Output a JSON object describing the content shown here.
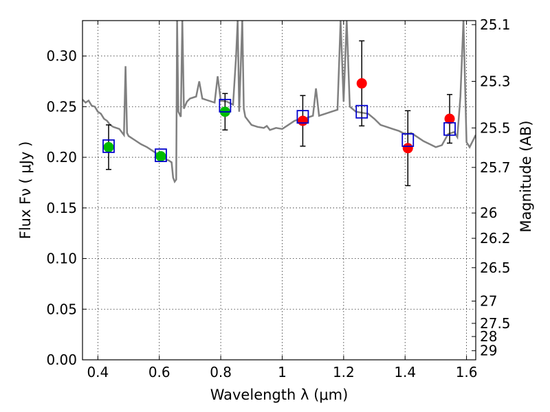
{
  "chart_data": {
    "type": "scatter",
    "xlabel": "Wavelength  λ (μm)",
    "ylabel": "Flux  Fν  ( μJy )",
    "ylabel_right": "Magnitude (AB)",
    "xlim": [
      0.35,
      1.63
    ],
    "ylim": [
      0.0,
      0.335
    ],
    "x_ticks": [
      0.4,
      0.6,
      0.8,
      1.0,
      1.2,
      1.4,
      1.6
    ],
    "x_tick_labels": [
      "0.4",
      "0.6",
      "0.8",
      "1",
      "1.2",
      "1.4",
      "1.6"
    ],
    "y_ticks": [
      0.0,
      0.05,
      0.1,
      0.15,
      0.2,
      0.25,
      0.3
    ],
    "y_tick_labels": [
      "0.00",
      "0.05",
      "0.10",
      "0.15",
      "0.20",
      "0.25",
      "0.30"
    ],
    "right_ticks": [
      {
        "label": "25.1",
        "flux": 0.331
      },
      {
        "label": "25.3",
        "flux": 0.275
      },
      {
        "label": "25.5",
        "flux": 0.229
      },
      {
        "label": "25.7",
        "flux": 0.19
      },
      {
        "label": "26",
        "flux": 0.145
      },
      {
        "label": "26.2",
        "flux": 0.12
      },
      {
        "label": "26.5",
        "flux": 0.091
      },
      {
        "label": "27",
        "flux": 0.058
      },
      {
        "label": "27.5",
        "flux": 0.036
      },
      {
        "label": "28",
        "flux": 0.023
      },
      {
        "label": "29",
        "flux": 0.009
      }
    ],
    "grid": true,
    "model_spectrum": {
      "color": "#808080",
      "points": [
        [
          0.35,
          0.257
        ],
        [
          0.36,
          0.254
        ],
        [
          0.37,
          0.256
        ],
        [
          0.38,
          0.251
        ],
        [
          0.39,
          0.25
        ],
        [
          0.4,
          0.245
        ],
        [
          0.41,
          0.243
        ],
        [
          0.42,
          0.238
        ],
        [
          0.43,
          0.236
        ],
        [
          0.44,
          0.232
        ],
        [
          0.45,
          0.23
        ],
        [
          0.46,
          0.229
        ],
        [
          0.47,
          0.228
        ],
        [
          0.48,
          0.224
        ],
        [
          0.485,
          0.222
        ],
        [
          0.49,
          0.29
        ],
        [
          0.495,
          0.224
        ],
        [
          0.5,
          0.221
        ],
        [
          0.52,
          0.217
        ],
        [
          0.54,
          0.213
        ],
        [
          0.56,
          0.21
        ],
        [
          0.58,
          0.206
        ],
        [
          0.6,
          0.202
        ],
        [
          0.62,
          0.198
        ],
        [
          0.63,
          0.197
        ],
        [
          0.64,
          0.195
        ],
        [
          0.645,
          0.18
        ],
        [
          0.65,
          0.176
        ],
        [
          0.655,
          0.178
        ],
        [
          0.658,
          0.335
        ],
        [
          0.662,
          0.245
        ],
        [
          0.67,
          0.24
        ],
        [
          0.675,
          0.335
        ],
        [
          0.68,
          0.248
        ],
        [
          0.69,
          0.255
        ],
        [
          0.7,
          0.258
        ],
        [
          0.72,
          0.26
        ],
        [
          0.73,
          0.275
        ],
        [
          0.74,
          0.258
        ],
        [
          0.76,
          0.256
        ],
        [
          0.78,
          0.254
        ],
        [
          0.79,
          0.28
        ],
        [
          0.8,
          0.256
        ],
        [
          0.82,
          0.255
        ],
        [
          0.84,
          0.252
        ],
        [
          0.85,
          0.3
        ],
        [
          0.855,
          0.335
        ],
        [
          0.86,
          0.245
        ],
        [
          0.87,
          0.335
        ],
        [
          0.875,
          0.248
        ],
        [
          0.88,
          0.24
        ],
        [
          0.9,
          0.232
        ],
        [
          0.92,
          0.23
        ],
        [
          0.94,
          0.229
        ],
        [
          0.95,
          0.231
        ],
        [
          0.96,
          0.227
        ],
        [
          0.98,
          0.229
        ],
        [
          1.0,
          0.228
        ],
        [
          1.02,
          0.232
        ],
        [
          1.04,
          0.236
        ],
        [
          1.06,
          0.238
        ],
        [
          1.08,
          0.239
        ],
        [
          1.1,
          0.241
        ],
        [
          1.11,
          0.268
        ],
        [
          1.12,
          0.241
        ],
        [
          1.14,
          0.243
        ],
        [
          1.16,
          0.245
        ],
        [
          1.18,
          0.247
        ],
        [
          1.19,
          0.335
        ],
        [
          1.2,
          0.255
        ],
        [
          1.21,
          0.335
        ],
        [
          1.22,
          0.25
        ],
        [
          1.24,
          0.245
        ],
        [
          1.26,
          0.244
        ],
        [
          1.28,
          0.243
        ],
        [
          1.3,
          0.238
        ],
        [
          1.32,
          0.232
        ],
        [
          1.34,
          0.23
        ],
        [
          1.36,
          0.228
        ],
        [
          1.38,
          0.226
        ],
        [
          1.4,
          0.223
        ],
        [
          1.42,
          0.224
        ],
        [
          1.44,
          0.22
        ],
        [
          1.46,
          0.216
        ],
        [
          1.48,
          0.213
        ],
        [
          1.5,
          0.21
        ],
        [
          1.52,
          0.212
        ],
        [
          1.54,
          0.223
        ],
        [
          1.56,
          0.225
        ],
        [
          1.57,
          0.22
        ],
        [
          1.58,
          0.26
        ],
        [
          1.59,
          0.335
        ],
        [
          1.6,
          0.215
        ],
        [
          1.61,
          0.21
        ],
        [
          1.63,
          0.222
        ]
      ]
    },
    "series": [
      {
        "marker": "circle",
        "color": "#00bb00",
        "points": [
          {
            "x": 0.435,
            "y": 0.21,
            "err": 0.022
          },
          {
            "x": 0.605,
            "y": 0.201,
            "err": 0.0
          },
          {
            "x": 0.814,
            "y": 0.245,
            "err": 0.018
          }
        ]
      },
      {
        "marker": "circle",
        "color": "#ff0000",
        "points": [
          {
            "x": 1.067,
            "y": 0.236,
            "err": 0.025
          },
          {
            "x": 1.259,
            "y": 0.273,
            "err": 0.042
          },
          {
            "x": 1.409,
            "y": 0.209,
            "err": 0.037
          },
          {
            "x": 1.545,
            "y": 0.238,
            "err": 0.024
          }
        ]
      },
      {
        "marker": "square",
        "color": "#0000cc",
        "points": [
          {
            "x": 0.435,
            "y": 0.211
          },
          {
            "x": 0.605,
            "y": 0.202
          },
          {
            "x": 0.814,
            "y": 0.251
          },
          {
            "x": 1.067,
            "y": 0.24
          },
          {
            "x": 1.259,
            "y": 0.245
          },
          {
            "x": 1.409,
            "y": 0.217
          },
          {
            "x": 1.545,
            "y": 0.228
          }
        ]
      }
    ]
  }
}
